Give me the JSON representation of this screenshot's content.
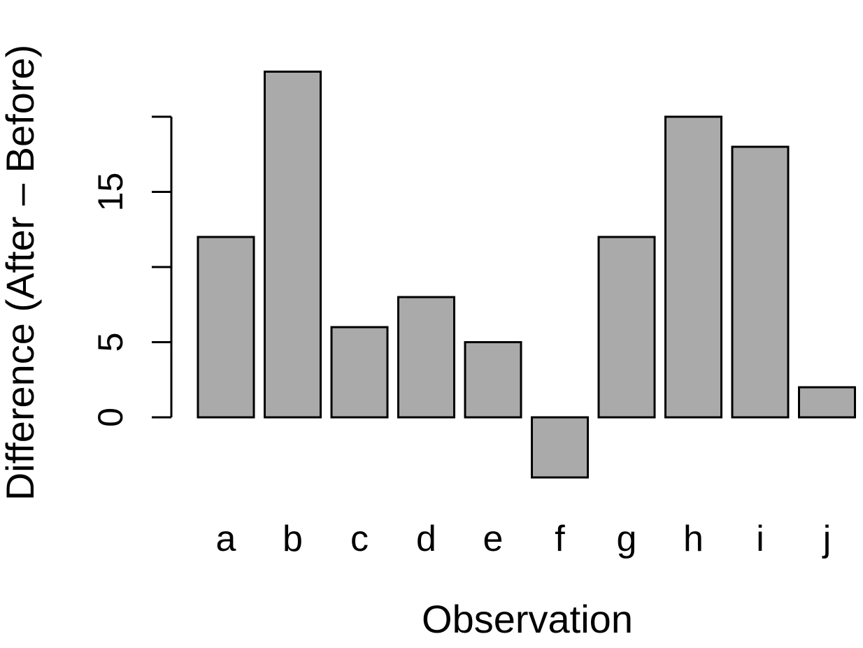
{
  "chart_data": {
    "type": "bar",
    "title": "",
    "xlabel": "Observation",
    "ylabel": "Difference (After – Before)",
    "categories": [
      "a",
      "b",
      "c",
      "d",
      "e",
      "f",
      "g",
      "h",
      "i",
      "j"
    ],
    "values": [
      12,
      23,
      6,
      8,
      5,
      -4,
      12,
      20,
      18,
      2
    ],
    "ylim": [
      -4,
      23
    ],
    "yticks": [
      0,
      5,
      10,
      15,
      20
    ],
    "ytick_labels": [
      "0",
      "5",
      "",
      "15",
      ""
    ],
    "grid": false,
    "legend": "none",
    "bar_color": "#aaaaaa",
    "bar_edge_color": "#000000"
  }
}
